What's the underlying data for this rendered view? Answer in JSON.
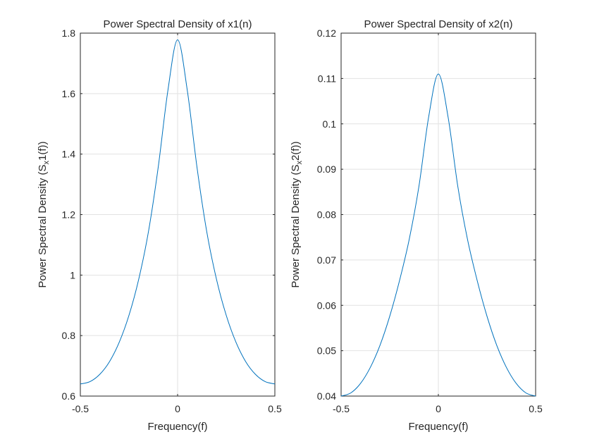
{
  "colors": {
    "background": "#ffffff",
    "axes_box": "#262626",
    "grid": "#e2e2e2",
    "line": "#0072bd"
  },
  "chart_data": [
    {
      "type": "line",
      "title": "Power Spectral Density of x1(n)",
      "xlabel": "Frequency(f)",
      "ylabel": "Power Spectral Density (S_x1(f))",
      "ylabel_parts": {
        "before": "Power Spectral Density (S",
        "sub": "x",
        "after": "1(f))"
      },
      "xlim": [
        -0.5,
        0.5
      ],
      "ylim": [
        0.6,
        1.8
      ],
      "xticks": [
        -0.5,
        0,
        0.5
      ],
      "xtick_labels": [
        "-0.5",
        "0",
        "0.5"
      ],
      "yticks": [
        0.6,
        0.8,
        1.0,
        1.2,
        1.4,
        1.6,
        1.8
      ],
      "ytick_labels": [
        "0.6",
        "0.8",
        "1",
        "1.2",
        "1.4",
        "1.6",
        "1.8"
      ],
      "grid": true,
      "series": [
        {
          "x": [
            -0.5,
            -0.45,
            -0.4,
            -0.35,
            -0.3,
            -0.25,
            -0.2,
            -0.15,
            -0.1,
            -0.05,
            0,
            0.05,
            0.1,
            0.15,
            0.2,
            0.25,
            0.3,
            0.35,
            0.4,
            0.45,
            0.5
          ],
          "y": [
            0.64,
            0.648,
            0.672,
            0.714,
            0.778,
            0.867,
            0.986,
            1.143,
            1.355,
            1.61,
            1.778,
            1.61,
            1.355,
            1.143,
            0.986,
            0.867,
            0.778,
            0.714,
            0.672,
            0.648,
            0.64
          ]
        }
      ]
    },
    {
      "type": "line",
      "title": "Power Spectral Density of x2(n)",
      "xlabel": "Frequency(f)",
      "ylabel": "Power Spectral Density (S_x2(f))",
      "ylabel_parts": {
        "before": "Power Spectral Density (S",
        "sub": "x",
        "after": "2(f))"
      },
      "xlim": [
        -0.5,
        0.5
      ],
      "ylim": [
        0.04,
        0.12
      ],
      "xticks": [
        -0.5,
        0,
        0.5
      ],
      "xtick_labels": [
        "-0.5",
        "0",
        "0.5"
      ],
      "yticks": [
        0.04,
        0.05,
        0.06,
        0.07,
        0.08,
        0.09,
        0.1,
        0.11,
        0.12
      ],
      "ytick_labels": [
        "0.04",
        "0.05",
        "0.06",
        "0.07",
        "0.08",
        "0.09",
        "0.1",
        "0.11",
        "0.12"
      ],
      "grid": true,
      "series": [
        {
          "x": [
            -0.5,
            -0.45,
            -0.4,
            -0.35,
            -0.3,
            -0.25,
            -0.2,
            -0.15,
            -0.1,
            -0.05,
            0,
            0.05,
            0.1,
            0.15,
            0.2,
            0.25,
            0.3,
            0.35,
            0.4,
            0.45,
            0.5
          ],
          "y": [
            0.04,
            0.0407,
            0.0428,
            0.0463,
            0.0512,
            0.0576,
            0.0654,
            0.0745,
            0.0862,
            0.1015,
            0.111,
            0.1015,
            0.0862,
            0.0745,
            0.0654,
            0.0576,
            0.0512,
            0.0463,
            0.0428,
            0.0407,
            0.04
          ]
        }
      ]
    }
  ]
}
